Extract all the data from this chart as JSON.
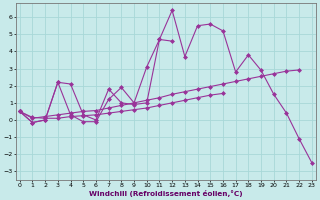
{
  "xlabel": "Windchill (Refroidissement éolien,°C)",
  "bg_color": "#c8eaea",
  "grid_color": "#a8d8d8",
  "line_color": "#993399",
  "x_ticks": [
    0,
    1,
    2,
    3,
    4,
    5,
    6,
    7,
    8,
    9,
    10,
    11,
    12,
    13,
    14,
    15,
    16,
    17,
    18,
    19,
    20,
    21,
    22,
    23
  ],
  "y_ticks": [
    -3,
    -2,
    -1,
    0,
    1,
    2,
    3,
    4,
    5,
    6
  ],
  "xlim": [
    -0.3,
    23.3
  ],
  "ylim": [
    -3.5,
    6.8
  ],
  "s1": [
    0.5,
    -0.15,
    0.0,
    2.2,
    0.3,
    -0.1,
    -0.1,
    1.2,
    1.9,
    1.0,
    3.1,
    4.7,
    6.4,
    3.7,
    5.5,
    5.6,
    5.2,
    2.8,
    3.8,
    2.9,
    1.5,
    0.4,
    -1.1,
    -2.5
  ],
  "s2": [
    0.5,
    -0.15,
    0.0,
    2.2,
    2.1,
    0.3,
    0.0,
    1.8,
    1.0,
    0.9,
    1.0,
    4.7,
    4.6,
    null,
    null,
    null,
    null,
    null,
    null,
    null,
    null,
    null,
    null,
    null
  ],
  "s3": [
    0.5,
    0.1,
    0.2,
    0.3,
    0.4,
    0.5,
    0.55,
    0.7,
    0.85,
    1.0,
    1.15,
    1.3,
    1.5,
    1.65,
    1.8,
    1.95,
    2.1,
    2.25,
    2.4,
    2.55,
    2.7,
    2.85,
    2.92,
    null
  ],
  "s4": [
    0.5,
    0.15,
    0.1,
    0.1,
    0.2,
    0.25,
    0.3,
    0.4,
    0.5,
    0.6,
    0.7,
    0.85,
    1.0,
    1.15,
    1.3,
    1.45,
    1.55,
    null,
    null,
    null,
    null,
    null,
    null,
    null
  ]
}
